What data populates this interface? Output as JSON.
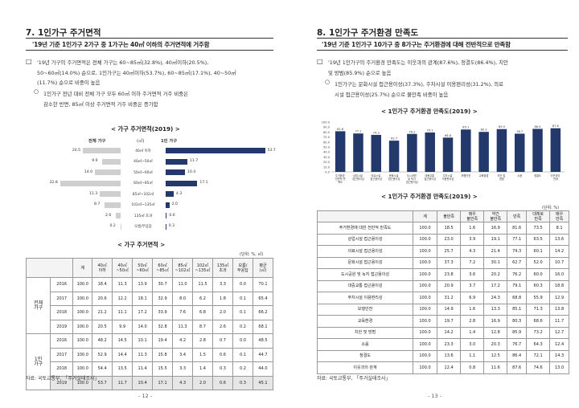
{
  "left": {
    "title": "7. 1인가구 주거면적",
    "subhead": "'19년 기준 1인가구 2가구 중 1가구는 40㎡ 이하의 주거면적에 거주함",
    "para1_l1": "'19년 가구의 주거면적은 전체 가구는 60~85㎡(32.8%), 40㎡이하(20.5%),",
    "para1_l2": "50~60㎡(14.0%) 순으로, 1인가구는 40㎡이하(53.7%), 60~85㎡(17.1%), 40~50㎡",
    "para1_l3": "(11.7%) 순으로 비중이 높음",
    "para2_l1": "1인가구 전년 대비 전체 가구 모두 60㎡ 이하 주거면적 거주 비중은",
    "para2_l2": "감소한 반면, 85㎡ 이상 주거면적 거주 비중은 증가함",
    "chart_caption": "< 가구 주거면적(2019) >",
    "chart_header": {
      "left": "전체 가구",
      "mid": "(㎡)",
      "right": "1인 가구"
    },
    "table_caption": "< 가구 주거면적 >",
    "table_unit": "(단위: %, ㎡)",
    "table_headers": [
      "계",
      "40㎡ 이하",
      "40㎡ ~50㎡",
      "50㎡ ~60㎡",
      "60㎡ ~85㎡",
      "85㎡ ~102㎡",
      "102㎡ ~135㎡",
      "135㎡ 초과",
      "모름/ 무응답",
      "평균 (㎡)"
    ],
    "table_groups": [
      {
        "label": "전체 가구",
        "rows": [
          {
            "year": "2016",
            "cells": [
              "100.0",
              "18.4",
              "11.3",
              "13.9",
              "30.7",
              "11.0",
              "11.5",
              "3.3",
              "0.0",
              "70.1"
            ]
          },
          {
            "year": "2017",
            "cells": [
              "100.0",
              "20.6",
              "12.2",
              "18.1",
              "32.9",
              "8.0",
              "6.2",
              "1.8",
              "0.1",
              "65.4"
            ]
          },
          {
            "year": "2018",
            "cells": [
              "100.0",
              "21.2",
              "11.1",
              "17.2",
              "33.9",
              "7.6",
              "6.8",
              "2.0",
              "0.1",
              "66.2"
            ]
          },
          {
            "year": "2019",
            "cells": [
              "100.0",
              "20.5",
              "9.9",
              "14.0",
              "32.8",
              "11.3",
              "8.7",
              "2.6",
              "0.2",
              "68.1"
            ]
          }
        ]
      },
      {
        "label": "1인 가구",
        "rows": [
          {
            "year": "2016",
            "cells": [
              "100.0",
              "48.2",
              "14.5",
              "10.1",
              "19.4",
              "4.2",
              "2.8",
              "0.7",
              "0.0",
              "48.5"
            ]
          },
          {
            "year": "2017",
            "cells": [
              "100.0",
              "52.9",
              "14.4",
              "11.3",
              "15.8",
              "3.4",
              "1.5",
              "0.6",
              "0.1",
              "44.7"
            ]
          },
          {
            "year": "2018",
            "cells": [
              "100.0",
              "54.4",
              "13.5",
              "11.4",
              "15.5",
              "3.3",
              "1.4",
              "0.3",
              "0.2",
              "44.0"
            ]
          },
          {
            "year": "2019",
            "cells": [
              "100.0",
              "53.7",
              "11.7",
              "10.4",
              "17.1",
              "4.3",
              "2.0",
              "0.6",
              "0.3",
              "45.1"
            ]
          }
        ]
      }
    ],
    "source": "자료: 국토교통부, 「주거실태조사」",
    "page_no": "- 12 -"
  },
  "right": {
    "title": "8. 1인가구 주거환경 만족도",
    "subhead": "'19년 기준 1인가구 10가구 중 8가구는 주거환경에 대해 전반적으로 만족함",
    "para1_l1": "'19년 1인가구의 주거환경 만족도는 이웃과의 관계(87.6%), 청결도(86.4%), 치안",
    "para1_l2": "및 방범(85.9%) 순으로 높음",
    "para2_l1": "1인가구는 문화시설 접근용이성(37.3%), 주차시설 이용편리성(31.2%), 의료",
    "para2_l2": "시설 접근용이성(25.7%) 순으로 불만족 비중이 높음",
    "chart_caption": "< 1인가구 주거환경 만족도(2019) >",
    "table_caption": "< 1인가구 주거환경 만족도(2019) >",
    "table_unit": "(단위: %)",
    "table_headers": [
      "계",
      "불만족",
      "매우 불만족",
      "약간 불만족",
      "만족",
      "대체로 만족",
      "매우 만족"
    ],
    "table_rows": [
      {
        "label": "주거환경에 대한 전반적 만족도",
        "cells": [
          "100.0",
          "18.5",
          "1.6",
          "16.9",
          "81.6",
          "73.5",
          "8.1"
        ]
      },
      {
        "label": "상업시설 접근용이성",
        "cells": [
          "100.0",
          "23.0",
          "3.9",
          "19.1",
          "77.1",
          "63.5",
          "13.6"
        ]
      },
      {
        "label": "의료시설 접근용이성",
        "cells": [
          "100.0",
          "25.7",
          "4.3",
          "21.4",
          "74.3",
          "60.1",
          "14.2"
        ]
      },
      {
        "label": "문화시설 접근용이성",
        "cells": [
          "100.0",
          "37.3",
          "7.2",
          "30.1",
          "62.7",
          "52.0",
          "10.7"
        ]
      },
      {
        "label": "도시공원 및 녹지 접근용이성",
        "cells": [
          "100.0",
          "23.8",
          "3.6",
          "20.2",
          "76.2",
          "60.0",
          "16.0"
        ]
      },
      {
        "label": "대중교통 접근용이성",
        "cells": [
          "100.0",
          "20.9",
          "3.7",
          "17.2",
          "79.1",
          "60.3",
          "18.8"
        ]
      },
      {
        "label": "주차시설 이용편리성",
        "cells": [
          "100.0",
          "31.2",
          "6.9",
          "24.3",
          "68.8",
          "55.9",
          "12.9"
        ]
      },
      {
        "label": "보행안전",
        "cells": [
          "100.0",
          "14.9",
          "1.6",
          "13.3",
          "85.1",
          "71.3",
          "13.8"
        ]
      },
      {
        "label": "교육환경",
        "cells": [
          "100.0",
          "19.7",
          "2.8",
          "16.9",
          "80.3",
          "68.6",
          "11.7"
        ]
      },
      {
        "label": "치안 및 방범",
        "cells": [
          "100.0",
          "14.2",
          "1.4",
          "12.8",
          "85.9",
          "73.2",
          "12.7"
        ]
      },
      {
        "label": "소음",
        "cells": [
          "100.0",
          "23.3",
          "3.0",
          "20.3",
          "76.7",
          "64.3",
          "12.4"
        ]
      },
      {
        "label": "청결도",
        "cells": [
          "100.0",
          "13.6",
          "1.1",
          "12.5",
          "86.4",
          "72.1",
          "14.3"
        ]
      },
      {
        "label": "이웃과의 관계",
        "cells": [
          "100.0",
          "12.4",
          "0.8",
          "11.6",
          "87.6",
          "74.6",
          "13.0"
        ]
      }
    ],
    "source": "자료: 국토교통부, 「주거실태조사」",
    "page_no": "- 13 -"
  },
  "chart_data": [
    {
      "type": "bar",
      "title": "< 가구 주거면적(2019) >",
      "categories": [
        "40㎡ 이하",
        "40㎡~50㎡",
        "50㎡~60㎡",
        "60㎡~85㎡",
        "85㎡~102㎡",
        "102㎡~135㎡",
        "135㎡ 초과",
        "모름/무응답"
      ],
      "series": [
        {
          "name": "전체 가구",
          "values": [
            20.5,
            9.9,
            14.0,
            32.8,
            11.3,
            8.7,
            2.6,
            0.2
          ]
        },
        {
          "name": "1인 가구",
          "values": [
            53.7,
            11.7,
            10.4,
            17.1,
            4.3,
            2.0,
            0.6,
            0.3
          ]
        }
      ],
      "colors": {
        "전체 가구": "#cfcfcf",
        "1인 가구": "#23386b"
      }
    },
    {
      "type": "bar",
      "title": "< 1인가구 주거환경 만족도(2019) >",
      "categories": [
        "주거환경 전반적 만족도",
        "상업시설 접근용이성",
        "의료시설 접근용이성",
        "문화시설 접근용이성",
        "도시공원 및 녹지 접근용이성",
        "대중교통 접근용이성",
        "주차시설 이용편리성",
        "보행안전",
        "교육환경",
        "치안 및 방범",
        "소음",
        "청결도",
        "이웃과의 관계"
      ],
      "values": [
        81.6,
        77.1,
        74.3,
        62.7,
        76.2,
        79.1,
        68.8,
        85.1,
        80.3,
        85.9,
        76.7,
        86.4,
        87.6
      ],
      "ylim": [
        0,
        100
      ],
      "yticks": [
        "100.0",
        "90.0",
        "80.0",
        "70.0",
        "60.0",
        "50.0",
        "40.0",
        "30.0",
        "20.0",
        "10.0",
        "0.0"
      ],
      "color": "#23386b"
    }
  ]
}
